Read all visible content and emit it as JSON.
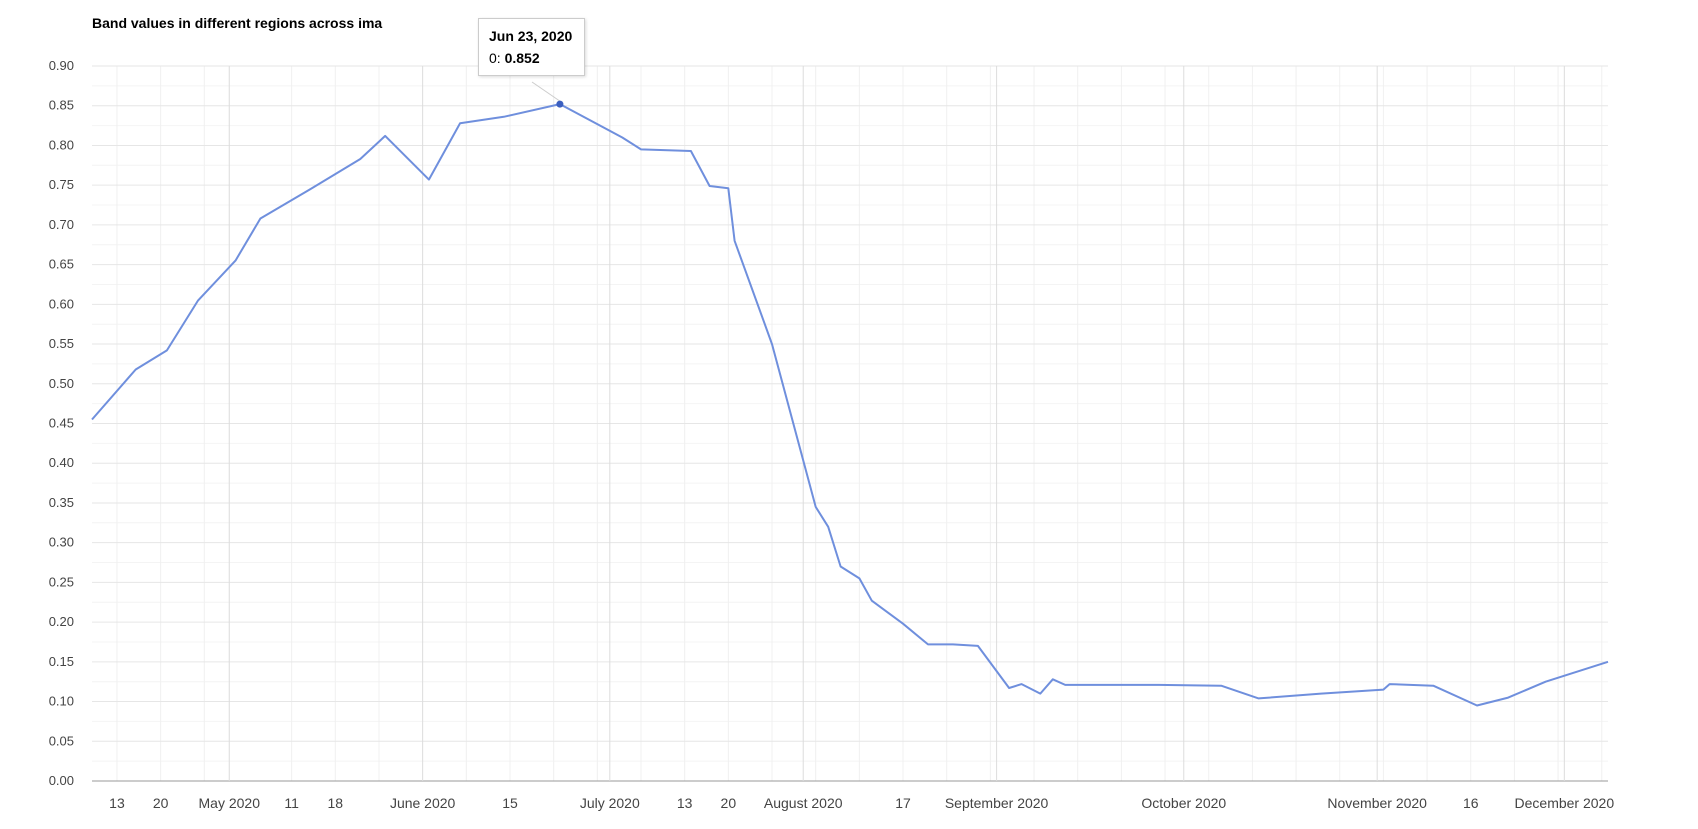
{
  "chart_data": {
    "type": "line",
    "title": "Band values in different regions across ima",
    "xlabel": "",
    "ylabel": "",
    "x_range": [
      "2020-04-09",
      "2020-12-08"
    ],
    "ylim": [
      0,
      0.9
    ],
    "y_ticks": [
      "0.00",
      "0.05",
      "0.10",
      "0.15",
      "0.20",
      "0.25",
      "0.30",
      "0.35",
      "0.40",
      "0.45",
      "0.50",
      "0.55",
      "0.60",
      "0.65",
      "0.70",
      "0.75",
      "0.80",
      "0.85",
      "0.90"
    ],
    "x_ticks": [
      {
        "date": "2020-04-13",
        "label": "13",
        "major": false
      },
      {
        "date": "2020-04-20",
        "label": "20",
        "major": false
      },
      {
        "date": "2020-05-01",
        "label": "May 2020",
        "major": true
      },
      {
        "date": "2020-05-11",
        "label": "11",
        "major": false
      },
      {
        "date": "2020-05-18",
        "label": "18",
        "major": false
      },
      {
        "date": "2020-06-01",
        "label": "June 2020",
        "major": true
      },
      {
        "date": "2020-06-15",
        "label": "15",
        "major": false
      },
      {
        "date": "2020-07-01",
        "label": "July 2020",
        "major": true
      },
      {
        "date": "2020-07-13",
        "label": "13",
        "major": false
      },
      {
        "date": "2020-07-20",
        "label": "20",
        "major": false
      },
      {
        "date": "2020-08-01",
        "label": "August 2020",
        "major": true
      },
      {
        "date": "2020-08-17",
        "label": "17",
        "major": false
      },
      {
        "date": "2020-09-01",
        "label": "September 2020",
        "major": true
      },
      {
        "date": "2020-10-01",
        "label": "October 2020",
        "major": true
      },
      {
        "date": "2020-11-01",
        "label": "November 2020",
        "major": true
      },
      {
        "date": "2020-11-16",
        "label": "16",
        "major": false
      },
      {
        "date": "2020-12-01",
        "label": "December 2020",
        "major": true
      }
    ],
    "minor_grid_dates": [
      "2020-04-13",
      "2020-04-20",
      "2020-04-27",
      "2020-05-11",
      "2020-05-18",
      "2020-05-25",
      "2020-06-08",
      "2020-06-15",
      "2020-06-22",
      "2020-06-29",
      "2020-07-06",
      "2020-07-13",
      "2020-07-20",
      "2020-07-27",
      "2020-08-03",
      "2020-08-10",
      "2020-08-17",
      "2020-08-24",
      "2020-08-31",
      "2020-09-07",
      "2020-09-14",
      "2020-09-21",
      "2020-09-28",
      "2020-10-05",
      "2020-10-12",
      "2020-10-19",
      "2020-10-26",
      "2020-11-02",
      "2020-11-09",
      "2020-11-16",
      "2020-11-23",
      "2020-11-30",
      "2020-12-07"
    ],
    "grid": true,
    "series": [
      {
        "color": "#6f8fdd",
        "points": [
          [
            "2020-04-09",
            0.455
          ],
          [
            "2020-04-16",
            0.518
          ],
          [
            "2020-04-21",
            0.542
          ],
          [
            "2020-04-26",
            0.605
          ],
          [
            "2020-05-02",
            0.655
          ],
          [
            "2020-05-06",
            0.708
          ],
          [
            "2020-05-14",
            0.745
          ],
          [
            "2020-05-22",
            0.783
          ],
          [
            "2020-05-26",
            0.812
          ],
          [
            "2020-06-02",
            0.757
          ],
          [
            "2020-06-07",
            0.828
          ],
          [
            "2020-06-14",
            0.836
          ],
          [
            "2020-06-23",
            0.852
          ],
          [
            "2020-07-03",
            0.81
          ],
          [
            "2020-07-06",
            0.795
          ],
          [
            "2020-07-14",
            0.793
          ],
          [
            "2020-07-17",
            0.749
          ],
          [
            "2020-07-20",
            0.746
          ],
          [
            "2020-07-21",
            0.68
          ],
          [
            "2020-07-27",
            0.55
          ],
          [
            "2020-08-03",
            0.345
          ],
          [
            "2020-08-05",
            0.32
          ],
          [
            "2020-08-07",
            0.27
          ],
          [
            "2020-08-10",
            0.255
          ],
          [
            "2020-08-12",
            0.227
          ],
          [
            "2020-08-17",
            0.198
          ],
          [
            "2020-08-21",
            0.172
          ],
          [
            "2020-08-25",
            0.172
          ],
          [
            "2020-08-29",
            0.17
          ],
          [
            "2020-09-03",
            0.117
          ],
          [
            "2020-09-05",
            0.122
          ],
          [
            "2020-09-08",
            0.11
          ],
          [
            "2020-09-10",
            0.128
          ],
          [
            "2020-09-12",
            0.121
          ],
          [
            "2020-09-17",
            0.121
          ],
          [
            "2020-09-27",
            0.121
          ],
          [
            "2020-10-07",
            0.12
          ],
          [
            "2020-10-13",
            0.104
          ],
          [
            "2020-10-23",
            0.11
          ],
          [
            "2020-11-02",
            0.115
          ],
          [
            "2020-11-03",
            0.122
          ],
          [
            "2020-11-10",
            0.12
          ],
          [
            "2020-11-17",
            0.095
          ],
          [
            "2020-11-22",
            0.105
          ],
          [
            "2020-11-28",
            0.125
          ],
          [
            "2020-12-08",
            0.15
          ]
        ]
      }
    ],
    "highlight": {
      "date": "2020-06-23",
      "value": 0.852
    }
  },
  "tooltip": {
    "date": "Jun 23, 2020",
    "series_label": "0:",
    "value": "0.852"
  }
}
